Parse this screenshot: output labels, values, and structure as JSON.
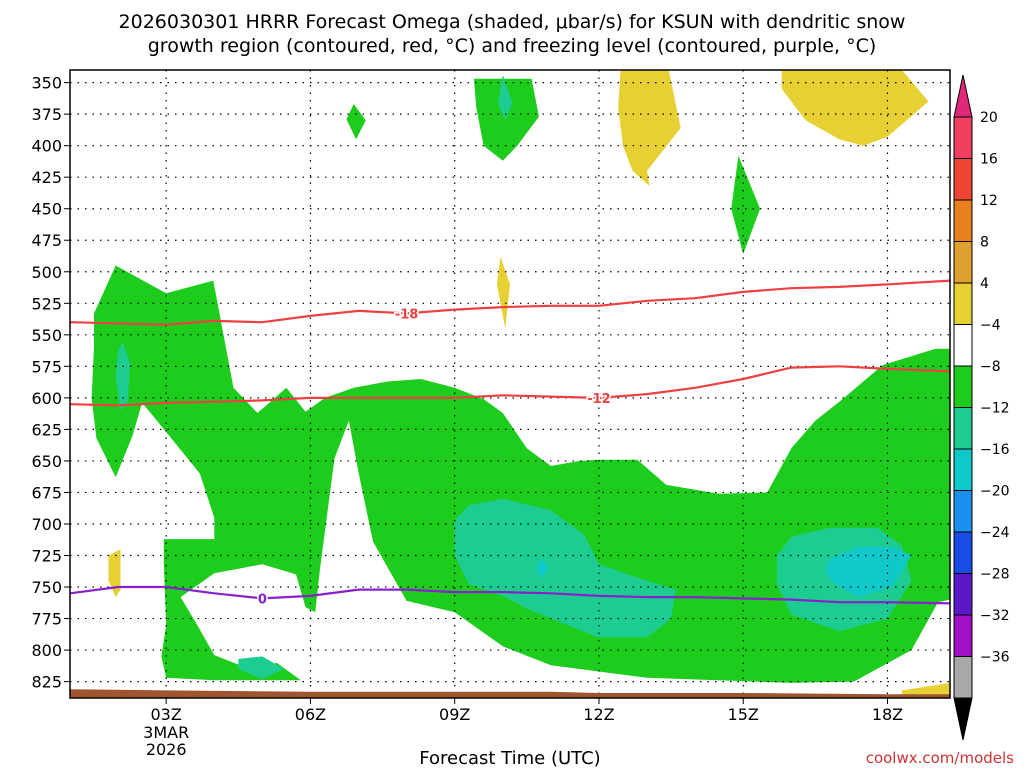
{
  "chart_data": {
    "type": "heatmap",
    "title_line1": "2026030301 HRRR Forecast Omega (shaded, μbar/s) for KSUN with dendritic snow",
    "title_line2": "growth region (contoured, red, °C) and freezing level (contoured, purple, °C)",
    "xlabel": "Forecast Time (UTC)",
    "x_hours_range": [
      1,
      19.3
    ],
    "x_ticks": [
      {
        "hour": 3,
        "label": "03Z"
      },
      {
        "hour": 6,
        "label": "06Z"
      },
      {
        "hour": 9,
        "label": "09Z"
      },
      {
        "hour": 12,
        "label": "12Z"
      },
      {
        "hour": 15,
        "label": "15Z"
      },
      {
        "hour": 18,
        "label": "18Z"
      }
    ],
    "date_label_line1": "3MAR",
    "date_label_line2": "2026",
    "y_pressure_range_hpa": [
      340,
      838
    ],
    "y_ticks": [
      350,
      375,
      400,
      425,
      450,
      475,
      500,
      525,
      550,
      575,
      600,
      625,
      650,
      675,
      700,
      725,
      750,
      775,
      800,
      825
    ],
    "grid": true,
    "colorbar": {
      "levels": [
        20,
        16,
        12,
        8,
        4,
        -4,
        -8,
        -12,
        -16,
        -20,
        -24,
        -28,
        -32,
        -36
      ],
      "colors": [
        "#f04060",
        "#ee4433",
        "#e8801e",
        "#e0a030",
        "#e6d033",
        "#ffffff",
        "#1ecc1e",
        "#1dcc90",
        "#11c8c8",
        "#1a90ee",
        "#1a4ce6",
        "#5a18c8",
        "#a010c4",
        "#a8a8a8"
      ],
      "top_color": "#e0287a",
      "bottom_color": "#000000"
    },
    "omega_regions": [
      {
        "level": "-4 to -8",
        "color": "#1ecc1e",
        "points": [
          [
            1.5,
            533
          ],
          [
            1.95,
            495
          ],
          [
            3.0,
            517
          ],
          [
            3.98,
            507
          ],
          [
            4.4,
            592
          ],
          [
            4.9,
            612
          ],
          [
            5.5,
            592
          ],
          [
            5.9,
            611
          ],
          [
            6.3,
            600
          ],
          [
            6.9,
            592
          ],
          [
            7.6,
            587
          ],
          [
            8.3,
            585
          ],
          [
            9.0,
            592
          ],
          [
            9.6,
            601
          ],
          [
            10.0,
            612
          ],
          [
            10.5,
            640
          ],
          [
            11.0,
            654
          ],
          [
            11.6,
            650
          ],
          [
            12.0,
            649
          ],
          [
            12.8,
            649
          ],
          [
            13.4,
            669
          ],
          [
            14.5,
            676
          ],
          [
            15.5,
            675
          ],
          [
            16.0,
            640
          ],
          [
            16.5,
            618
          ],
          [
            17.0,
            603
          ],
          [
            17.9,
            574
          ],
          [
            19.0,
            561
          ],
          [
            19.3,
            561
          ],
          [
            19.3,
            760
          ],
          [
            19.05,
            762
          ],
          [
            18.5,
            800
          ],
          [
            17.3,
            825
          ],
          [
            16.0,
            826
          ],
          [
            13.0,
            822
          ],
          [
            11.0,
            812
          ],
          [
            10.0,
            797
          ],
          [
            9.0,
            770
          ],
          [
            8.0,
            761
          ],
          [
            7.3,
            714
          ],
          [
            7.0,
            659
          ],
          [
            6.8,
            618
          ],
          [
            6.5,
            648
          ],
          [
            6.2,
            735
          ],
          [
            6.1,
            770
          ],
          [
            5.9,
            766
          ],
          [
            5.7,
            740
          ],
          [
            5.0,
            732
          ],
          [
            4.0,
            739
          ],
          [
            3.3,
            758
          ],
          [
            3.6,
            777
          ],
          [
            4.0,
            804
          ],
          [
            4.8,
            816
          ],
          [
            5.3,
            810
          ],
          [
            5.8,
            824
          ],
          [
            4.0,
            824
          ],
          [
            3.0,
            822
          ],
          [
            2.9,
            805
          ],
          [
            3.0,
            780
          ],
          [
            2.95,
            732
          ],
          [
            2.95,
            712
          ],
          [
            4.0,
            712
          ],
          [
            4.0,
            695
          ],
          [
            3.7,
            660
          ],
          [
            2.7,
            613
          ],
          [
            2.5,
            604
          ],
          [
            2.3,
            630
          ],
          [
            1.95,
            663
          ],
          [
            1.55,
            632
          ],
          [
            1.45,
            600
          ],
          [
            1.5,
            560
          ]
        ]
      },
      {
        "level": "-4 to -8",
        "color": "#1ecc1e",
        "points": [
          [
            9.4,
            347
          ],
          [
            10.6,
            347
          ],
          [
            10.75,
            377
          ],
          [
            10.3,
            400
          ],
          [
            10.0,
            412
          ],
          [
            9.6,
            400
          ],
          [
            9.45,
            370
          ]
        ]
      },
      {
        "level": "-4 to -8",
        "color": "#1ecc1e",
        "points": [
          [
            6.9,
            367
          ],
          [
            7.15,
            380
          ],
          [
            6.95,
            395
          ],
          [
            6.75,
            379
          ]
        ]
      },
      {
        "level": "-4 to -8",
        "color": "#1ecc1e",
        "points": [
          [
            14.9,
            408
          ],
          [
            15.35,
            450
          ],
          [
            15.0,
            486
          ],
          [
            14.75,
            450
          ]
        ]
      },
      {
        "level": "-8 to -12",
        "color": "#1dcc90",
        "points": [
          [
            10.0,
            344
          ],
          [
            10.2,
            366
          ],
          [
            10.05,
            380
          ],
          [
            9.9,
            366
          ]
        ]
      },
      {
        "level": "-8 to -12",
        "color": "#1dcc90",
        "points": [
          [
            2.1,
            556
          ],
          [
            2.25,
            573
          ],
          [
            2.2,
            603
          ],
          [
            2.05,
            610
          ],
          [
            1.95,
            583
          ],
          [
            2.0,
            562
          ]
        ]
      },
      {
        "level": "-8 to -12",
        "color": "#1dcc90",
        "points": [
          [
            4.5,
            807
          ],
          [
            5.0,
            805
          ],
          [
            5.45,
            815
          ],
          [
            5.0,
            823
          ],
          [
            4.5,
            815
          ]
        ]
      },
      {
        "level": "-8 to -12",
        "color": "#1dcc90",
        "points": [
          [
            9.0,
            697
          ],
          [
            9.3,
            685
          ],
          [
            10.0,
            680
          ],
          [
            11.0,
            689
          ],
          [
            11.7,
            709
          ],
          [
            12.0,
            732
          ],
          [
            13.0,
            745
          ],
          [
            13.6,
            752
          ],
          [
            13.5,
            775
          ],
          [
            13.0,
            790
          ],
          [
            12.0,
            790
          ],
          [
            11.0,
            775
          ],
          [
            10.5,
            767
          ],
          [
            10.0,
            757
          ],
          [
            9.3,
            748
          ],
          [
            9.0,
            725
          ]
        ]
      },
      {
        "level": "-8 to -12",
        "color": "#1dcc90",
        "points": [
          [
            15.7,
            725
          ],
          [
            16.0,
            710
          ],
          [
            16.8,
            703
          ],
          [
            17.8,
            703
          ],
          [
            18.3,
            717
          ],
          [
            18.5,
            745
          ],
          [
            18.0,
            775
          ],
          [
            17.0,
            785
          ],
          [
            16.0,
            772
          ],
          [
            15.7,
            748
          ]
        ]
      },
      {
        "level": "-12 to -16",
        "color": "#11c8c8",
        "points": [
          [
            16.8,
            728
          ],
          [
            17.4,
            718
          ],
          [
            18.1,
            718
          ],
          [
            18.5,
            725
          ],
          [
            18.1,
            750
          ],
          [
            17.4,
            758
          ],
          [
            16.9,
            748
          ],
          [
            16.7,
            737
          ]
        ]
      },
      {
        "level": "-12 to -16",
        "color": "#11c8c8",
        "points": [
          [
            10.8,
            727
          ],
          [
            10.95,
            735
          ],
          [
            10.8,
            744
          ],
          [
            10.7,
            735
          ]
        ]
      },
      {
        "level": "4 to 8",
        "color": "#e6d033",
        "points": [
          [
            12.45,
            340
          ],
          [
            13.45,
            340
          ],
          [
            13.7,
            386
          ],
          [
            13.0,
            420
          ],
          [
            13.05,
            432
          ],
          [
            12.7,
            420
          ],
          [
            12.5,
            400
          ],
          [
            12.4,
            370
          ]
        ]
      },
      {
        "level": "4 to 8",
        "color": "#e6d033",
        "points": [
          [
            15.8,
            340
          ],
          [
            18.3,
            340
          ],
          [
            18.85,
            365
          ],
          [
            18.0,
            393
          ],
          [
            17.5,
            400
          ],
          [
            17.0,
            395
          ],
          [
            16.3,
            380
          ],
          [
            15.8,
            355
          ]
        ]
      },
      {
        "level": "4 to 8",
        "color": "#e6d033",
        "points": [
          [
            9.95,
            488
          ],
          [
            10.15,
            510
          ],
          [
            10.05,
            545
          ],
          [
            9.88,
            510
          ]
        ]
      },
      {
        "level": "4 to 8",
        "color": "#e6d033",
        "points": [
          [
            1.8,
            725
          ],
          [
            2.05,
            720
          ],
          [
            2.05,
            752
          ],
          [
            1.95,
            758
          ],
          [
            1.8,
            745
          ]
        ]
      },
      {
        "level": "4 to 8",
        "color": "#e6d033",
        "points": [
          [
            18.3,
            832
          ],
          [
            19.3,
            826
          ],
          [
            19.3,
            843
          ],
          [
            18.3,
            843
          ]
        ]
      }
    ],
    "contours": [
      {
        "name": "dendritic snow growth -18",
        "label": "-18",
        "label_hour": 8.0,
        "color": "#ee4040",
        "points": [
          [
            1,
            540
          ],
          [
            3,
            542
          ],
          [
            4,
            539
          ],
          [
            5,
            540
          ],
          [
            6,
            535
          ],
          [
            7,
            531
          ],
          [
            8,
            533
          ],
          [
            9,
            530
          ],
          [
            10,
            528
          ],
          [
            11,
            527
          ],
          [
            12,
            527
          ],
          [
            13,
            523
          ],
          [
            14,
            521
          ],
          [
            15,
            516
          ],
          [
            16,
            513
          ],
          [
            17,
            512
          ],
          [
            18,
            510
          ],
          [
            19.3,
            507
          ]
        ]
      },
      {
        "name": "dendritic snow growth -12",
        "label": "-12",
        "label_hour": 12.0,
        "color": "#ee4040",
        "points": [
          [
            1,
            605
          ],
          [
            2,
            606
          ],
          [
            3,
            604
          ],
          [
            4,
            603
          ],
          [
            5,
            602
          ],
          [
            6,
            600
          ],
          [
            7,
            600
          ],
          [
            8,
            600
          ],
          [
            9,
            600
          ],
          [
            10,
            598
          ],
          [
            11,
            599
          ],
          [
            12,
            600
          ],
          [
            13,
            597
          ],
          [
            14,
            592
          ],
          [
            15,
            585
          ],
          [
            16,
            576
          ],
          [
            17,
            575
          ],
          [
            18,
            577
          ],
          [
            19.3,
            579
          ]
        ]
      },
      {
        "name": "freezing level 0",
        "label": "0",
        "label_hour": 5.0,
        "color": "#8820cc",
        "points": [
          [
            1,
            755
          ],
          [
            2,
            750
          ],
          [
            3,
            750
          ],
          [
            4,
            755
          ],
          [
            5,
            759
          ],
          [
            6,
            757
          ],
          [
            7,
            752
          ],
          [
            8,
            752
          ],
          [
            9,
            754
          ],
          [
            10,
            754
          ],
          [
            11,
            755
          ],
          [
            12,
            757
          ],
          [
            13,
            758
          ],
          [
            14,
            758
          ],
          [
            15,
            759
          ],
          [
            16,
            760
          ],
          [
            17,
            762
          ],
          [
            18,
            762
          ],
          [
            19.3,
            763
          ]
        ]
      }
    ],
    "terrain_color": "#a05530",
    "terrain_top_hpa": [
      [
        1,
        831
      ],
      [
        3,
        832
      ],
      [
        6,
        833
      ],
      [
        9,
        833
      ],
      [
        11,
        833
      ],
      [
        12,
        834
      ],
      [
        15,
        834
      ],
      [
        18,
        835
      ],
      [
        19.3,
        835
      ]
    ]
  },
  "credit": "coolwx.com/models"
}
